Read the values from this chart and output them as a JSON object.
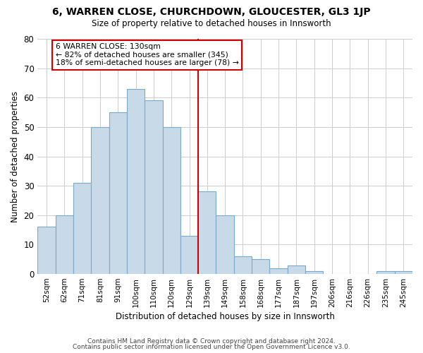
{
  "title": "6, WARREN CLOSE, CHURCHDOWN, GLOUCESTER, GL3 1JP",
  "subtitle": "Size of property relative to detached houses in Innsworth",
  "xlabel": "Distribution of detached houses by size in Innsworth",
  "ylabel": "Number of detached properties",
  "footer_line1": "Contains HM Land Registry data © Crown copyright and database right 2024.",
  "footer_line2": "Contains public sector information licensed under the Open Government Licence v3.0.",
  "bin_labels": [
    "52sqm",
    "62sqm",
    "71sqm",
    "81sqm",
    "91sqm",
    "100sqm",
    "110sqm",
    "120sqm",
    "129sqm",
    "139sqm",
    "149sqm",
    "158sqm",
    "168sqm",
    "177sqm",
    "187sqm",
    "197sqm",
    "206sqm",
    "216sqm",
    "226sqm",
    "235sqm",
    "245sqm"
  ],
  "bar_heights": [
    16,
    20,
    31,
    50,
    55,
    63,
    59,
    50,
    13,
    28,
    20,
    6,
    5,
    2,
    3,
    1,
    0,
    0,
    0,
    1,
    1
  ],
  "bar_color": "#c8d9e8",
  "bar_edge_color": "#7aaac8",
  "marker_line_color": "#cc0000",
  "annotation_line1": "6 WARREN CLOSE: 130sqm",
  "annotation_line2": "← 82% of detached houses are smaller (345)",
  "annotation_line3": "18% of semi-detached houses are larger (78) →",
  "ylim": [
    0,
    80
  ],
  "yticks": [
    0,
    10,
    20,
    30,
    40,
    50,
    60,
    70,
    80
  ],
  "marker_bar_index": 8
}
